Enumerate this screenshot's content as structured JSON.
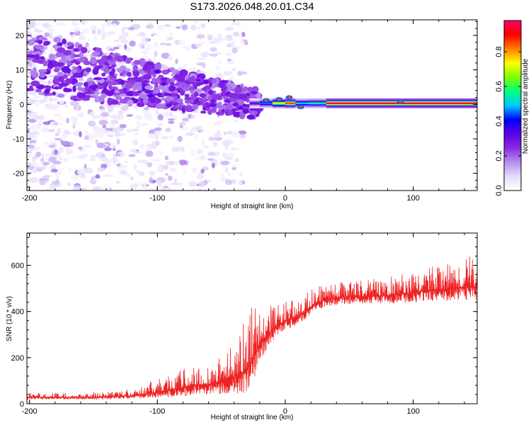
{
  "title": "S173.2026.048.20.01.C34",
  "chart_data": [
    {
      "type": "heatmap",
      "name": "spectrogram",
      "xlabel": "Height of straight line (km)",
      "ylabel": "Frequency (Hz)",
      "xlim": [
        -202,
        150
      ],
      "ylim": [
        -25,
        24.5
      ],
      "xticks": [
        -200,
        -100,
        0,
        100
      ],
      "yticks": [
        -20,
        -10,
        0,
        10,
        20
      ],
      "colorbar": {
        "label": "Normalized spectral amplitude",
        "range": [
          0.0,
          0.98
        ],
        "ticks": [
          0.0,
          0.2,
          0.4,
          0.6,
          0.8
        ],
        "tick_labels": [
          "0.0",
          "0.2",
          "0.4",
          "0.6",
          "0.8"
        ],
        "colormap": [
          "#ffffff",
          "#e6dcfa",
          "#b48ef0",
          "#8a2be2",
          "#5a00e6",
          "#0000ff",
          "#00c8ff",
          "#00ff80",
          "#80ff00",
          "#ffff00",
          "#ff8000",
          "#ff0000",
          "#ff0066"
        ]
      },
      "features": {
        "scattered_blobs": {
          "x_range": [
            -202,
            -30
          ],
          "y_range": [
            -25,
            24
          ],
          "amplitude": [
            0.03,
            0.22
          ]
        },
        "descending_band": {
          "x_range": [
            -200,
            -20
          ],
          "y_start": 12,
          "y_end": 0,
          "amplitude": [
            0.15,
            0.3
          ]
        },
        "hotspots": [
          {
            "x": -100,
            "y": 9.5,
            "value": 0.35
          },
          {
            "x": -95,
            "y": 6,
            "value": 0.32
          },
          {
            "x": -68,
            "y": 7,
            "value": 0.3
          },
          {
            "x": -62,
            "y": 6.5,
            "value": 0.33
          },
          {
            "x": -105,
            "y": 2.5,
            "value": 0.35
          },
          {
            "x": -45,
            "y": 1,
            "value": 0.3
          },
          {
            "x": -35,
            "y": -1,
            "value": 0.32
          }
        ],
        "ridge": {
          "x_start": -28,
          "x_end": 150,
          "frequency": 0.3,
          "segments": [
            {
              "x_start": -28,
              "x_end": -20,
              "value": 0.3
            },
            {
              "x_start": -20,
              "x_end": -10,
              "value": 0.45
            },
            {
              "x_start": -10,
              "x_end": 0,
              "value": 0.7
            },
            {
              "x_start": 0,
              "x_end": 8,
              "value": 0.85
            },
            {
              "x_start": 8,
              "x_end": 18,
              "value": 0.5
            },
            {
              "x_start": 18,
              "x_end": 32,
              "value": 0.55
            },
            {
              "x_start": 32,
              "x_end": 150,
              "value": 0.95
            }
          ]
        }
      }
    },
    {
      "type": "line",
      "name": "snr",
      "xlabel": "Height of straight line (km)",
      "ylabel": "SNR (10 * v/v)",
      "xlim": [
        -202,
        150
      ],
      "ylim": [
        0,
        740
      ],
      "xticks": [
        -200,
        -100,
        0,
        100
      ],
      "yticks": [
        0,
        200,
        400,
        600
      ],
      "color": "#ee2222",
      "envelope": {
        "x": [
          -202,
          -160,
          -140,
          -120,
          -100,
          -90,
          -80,
          -70,
          -60,
          -50,
          -40,
          -30,
          -25,
          -20,
          -15,
          -10,
          -5,
          0,
          10,
          20,
          30,
          40,
          50,
          60,
          70,
          80,
          90,
          100,
          110,
          120,
          130,
          140,
          150
        ],
        "base": [
          28,
          28,
          30,
          35,
          50,
          60,
          70,
          80,
          85,
          95,
          115,
          150,
          200,
          260,
          295,
          320,
          345,
          360,
          380,
          420,
          450,
          460,
          465,
          465,
          470,
          470,
          475,
          480,
          490,
          495,
          500,
          505,
          510
        ],
        "amplitude": [
          20,
          22,
          25,
          30,
          55,
          75,
          85,
          90,
          95,
          120,
          160,
          230,
          260,
          170,
          140,
          110,
          90,
          85,
          80,
          75,
          70,
          70,
          75,
          75,
          75,
          80,
          85,
          90,
          100,
          110,
          120,
          130,
          140
        ]
      },
      "max_value": 740
    }
  ]
}
